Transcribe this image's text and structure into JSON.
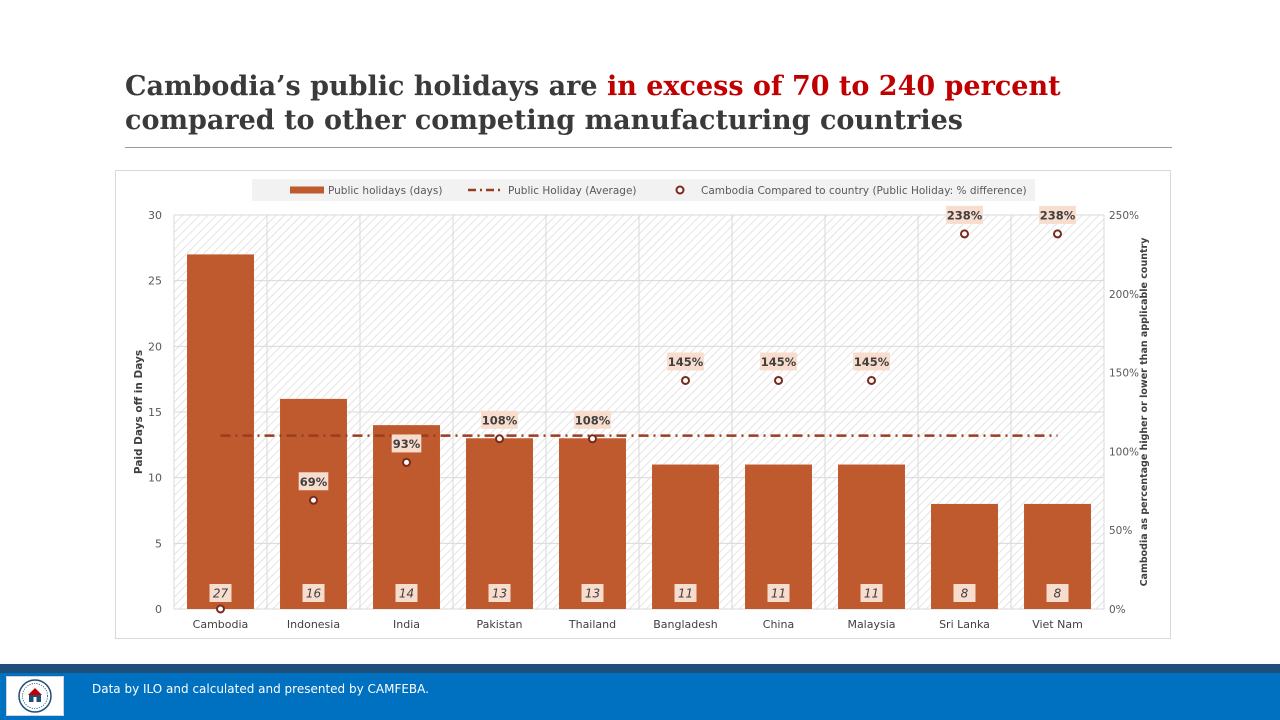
{
  "slide": {
    "title_part1": "Cambodia’s public holidays are ",
    "title_highlight": "in excess of 70 to 240 percent",
    "title_part2": "compared to other competing manufacturing countries",
    "highlight_color": "#c00000",
    "footer_text": "Data by ILO and calculated and presented by CAMFEBA.",
    "logo_icon": "camfeba-logo-icon"
  },
  "chart_data": {
    "type": "bar",
    "categories": [
      "Cambodia",
      "Indonesia",
      "India",
      "Pakistan",
      "Thailand",
      "Bangladesh",
      "China",
      "Malaysia",
      "Sri Lanka",
      "Viet Nam"
    ],
    "series": [
      {
        "name": "Public holidays (days)",
        "type": "bar",
        "axis": "left",
        "color": "#be5a2d",
        "values": [
          27,
          16,
          14,
          13,
          13,
          11,
          11,
          11,
          8,
          8
        ],
        "labels": [
          "27",
          "16",
          "14",
          "13",
          "13",
          "11",
          "11",
          "11",
          "8",
          "8"
        ]
      },
      {
        "name": "Public Holiday (Average)",
        "type": "line",
        "style": "dash-dot",
        "axis": "left",
        "color": "#9a3c20",
        "values": [
          13.2,
          13.2,
          13.2,
          13.2,
          13.2,
          13.2,
          13.2,
          13.2,
          13.2,
          13.2
        ]
      },
      {
        "name": "Cambodia Compared to country (Public Holiday: % difference)",
        "type": "scatter",
        "axis": "right",
        "color": "#7a2a1a",
        "values": [
          0,
          69,
          93,
          108,
          108,
          145,
          145,
          145,
          238,
          238
        ],
        "labels": [
          "",
          "69%",
          "93%",
          "108%",
          "108%",
          "145%",
          "145%",
          "145%",
          "238%",
          "238%"
        ]
      }
    ],
    "y_left": {
      "label": "Paid Days off in Days",
      "range": [
        0,
        30
      ],
      "ticks": [
        "30",
        "25",
        "20",
        "15",
        "10",
        "5",
        "0"
      ],
      "tick_values": [
        30,
        25,
        20,
        15,
        10,
        5,
        0
      ]
    },
    "y_right": {
      "label": "Cambodia as percentage higher or lower than applicable country",
      "range": [
        0,
        250
      ],
      "ticks": [
        "250%",
        "200%",
        "150%",
        "100%",
        "50%",
        "0%"
      ],
      "tick_values": [
        250,
        200,
        150,
        100,
        50,
        0
      ]
    },
    "grid": true,
    "legend_position": "top"
  }
}
